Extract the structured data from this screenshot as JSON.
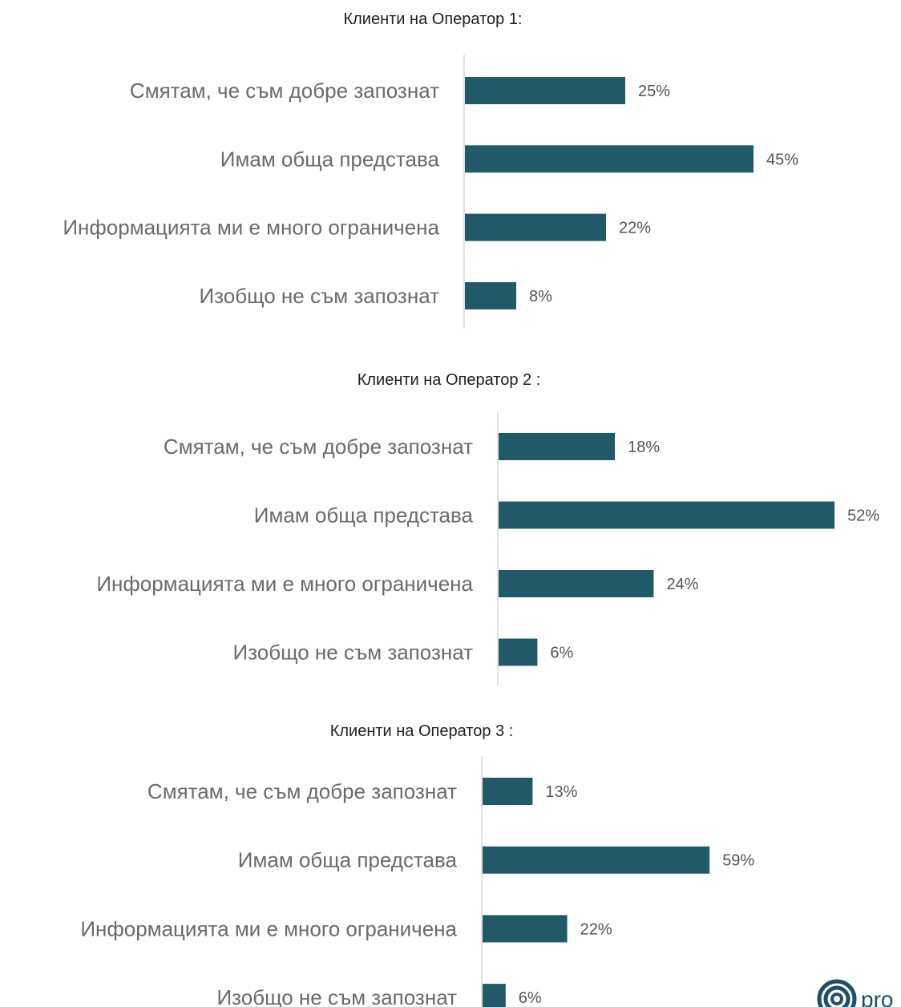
{
  "chart_data": [
    {
      "type": "bar",
      "title": "Клиенти на Оператор 1:",
      "categories": [
        "Смятам, че съм добре запознат",
        "Имам обща представа",
        "Информацията ми е много ограничена",
        "Изобщо не съм запознат"
      ],
      "values": [
        25,
        45,
        22,
        8
      ],
      "value_labels": [
        "25%",
        "45%",
        "22%",
        "8%"
      ],
      "orientation": "horizontal",
      "bar_color": "#215968",
      "grid": false
    },
    {
      "type": "bar",
      "title": "Клиенти на Оператор 2 :",
      "categories": [
        "Смятам, че съм добре запознат",
        "Имам обща представа",
        "Информацията ми е много ограничена",
        "Изобщо не съм запознат"
      ],
      "values": [
        18,
        52,
        24,
        6
      ],
      "value_labels": [
        "18%",
        "52%",
        "24%",
        "6%"
      ],
      "orientation": "horizontal",
      "bar_color": "#215968",
      "grid": false
    },
    {
      "type": "bar",
      "title": "Клиенти на Оператор 3 :",
      "categories": [
        "Смятам, че съм добре запознат",
        "Имам обща представа",
        "Информацията ми е много ограничена",
        "Изобщо не съм запознат"
      ],
      "values": [
        13,
        59,
        22,
        6
      ],
      "value_labels": [
        "13%",
        "59%",
        "22%",
        "6%"
      ],
      "orientation": "horizontal",
      "bar_color": "#215968",
      "grid": false
    }
  ],
  "logo": {
    "icon": "concentric-circles-icon",
    "text": "pro",
    "color": "#1f4e6b"
  }
}
